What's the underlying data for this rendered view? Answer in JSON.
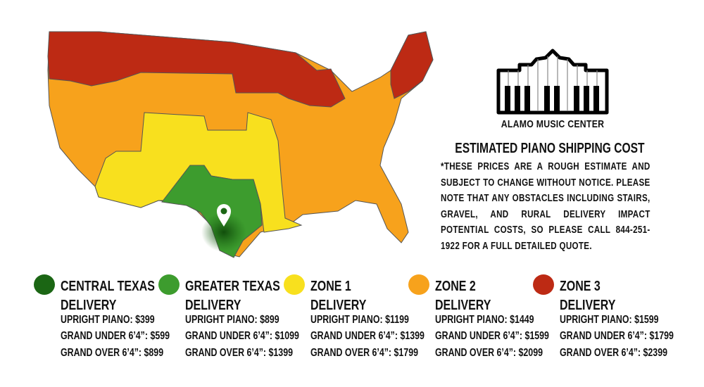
{
  "brand": {
    "name": "ALAMO MUSIC CENTER",
    "icon": "piano-alamo-logo"
  },
  "heading": "ESTIMATED PIANO SHIPPING COST",
  "note": "*THESE PRICES ARE A ROUGH ESTIMATE AND SUBJECT TO CHANGE WITHOUT NOTICE. PLEASE NOTE THAT ANY OBSTACLES INCLUDING STAIRS, GRAVEL, AND RURAL DELIVERY IMPACT POTENTIAL COSTS, SO PLEASE CALL 844-251-1922 FOR A FULL DETAILED QUOTE.",
  "map": {
    "marker_icon": "location-pin-icon",
    "marker_location": "Central Texas"
  },
  "zones": [
    {
      "title1": "CENTRAL TEXAS",
      "title2": "DELIVERY",
      "color": "#1b6614",
      "upright": "UPRIGHT PIANO: $399",
      "grand_under": "GRAND UNDER 6’4”: $599",
      "grand_over": "GRAND OVER 6’4”: $899"
    },
    {
      "title1": "GREATER TEXAS",
      "title2": "DELIVERY",
      "color": "#3d9c2e",
      "upright": "UPRIGHT PIANO: $899",
      "grand_under": "GRAND UNDER 6’4”: $1099",
      "grand_over": "GRAND OVER 6’4”: $1399"
    },
    {
      "title1": "ZONE 1",
      "title2": "DELIVERY",
      "color": "#f8e01e",
      "upright": "UPRIGHT PIANO: $1199",
      "grand_under": "GRAND UNDER 6’4”: $1399",
      "grand_over": "GRAND OVER 6’4”: $1799"
    },
    {
      "title1": "ZONE 2",
      "title2": "DELIVERY",
      "color": "#f7a21c",
      "upright": "UPRIGHT PIANO: $1449",
      "grand_under": "GRAND UNDER 6’4”: $1599",
      "grand_over": "GRAND OVER 6’4”: $2099"
    },
    {
      "title1": "ZONE 3",
      "title2": "DELIVERY",
      "color": "#bd2a14",
      "upright": "UPRIGHT PIANO: $1599",
      "grand_under": "GRAND UNDER 6’4”: $1799",
      "grand_over": "GRAND OVER 6’4”: $2399"
    }
  ]
}
